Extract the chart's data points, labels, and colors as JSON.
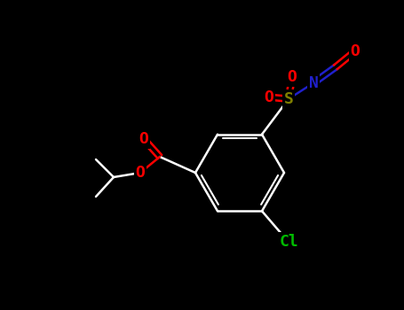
{
  "background_color": "#000000",
  "figsize": [
    4.55,
    3.5
  ],
  "dpi": 100,
  "bond_color": "#FFFFFF",
  "bond_lw": 1.8,
  "colors": {
    "C": "#FFFFFF",
    "O": "#FF0000",
    "N": "#2020CC",
    "S": "#808000",
    "Cl": "#00BB00"
  },
  "font_size": 13,
  "font_size_small": 11
}
